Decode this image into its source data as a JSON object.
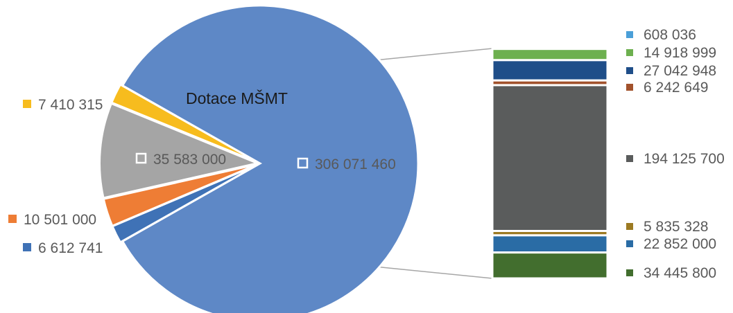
{
  "chart_data": {
    "type": "pie",
    "title": "Dotace MŠMT",
    "pie": {
      "slices": [
        {
          "label": "306 071 460",
          "value": 306071460,
          "color": "#5E88C6"
        },
        {
          "label": "6 612 741",
          "value": 6612741,
          "color": "#3F72B6"
        },
        {
          "label": "10 501 000",
          "value": 10501000,
          "color": "#EE7D35"
        },
        {
          "label": "35 583 000",
          "value": 35583000,
          "color": "#A5A5A5"
        },
        {
          "label": "7 410 315",
          "value": 7410315,
          "color": "#F7BC1E"
        }
      ]
    },
    "breakdown": {
      "of": "306 071 460",
      "segments": [
        {
          "label": "608 036",
          "value": 608036,
          "color": "#4A9FD8"
        },
        {
          "label": "14 918 999",
          "value": 14918999,
          "color": "#6DB04F"
        },
        {
          "label": "27 042 948",
          "value": 27042948,
          "color": "#1F4E89"
        },
        {
          "label": "6 242 649",
          "value": 6242649,
          "color": "#A2522C"
        },
        {
          "label": "194 125 700",
          "value": 194125700,
          "color": "#5A5C5C"
        },
        {
          "label": "5 835 328",
          "value": 5835328,
          "color": "#9C7A22"
        },
        {
          "label": "22 852 000",
          "value": 22852000,
          "color": "#2A6CA5"
        },
        {
          "label": "34 445 800",
          "value": 34445800,
          "color": "#426E2E"
        }
      ]
    }
  }
}
